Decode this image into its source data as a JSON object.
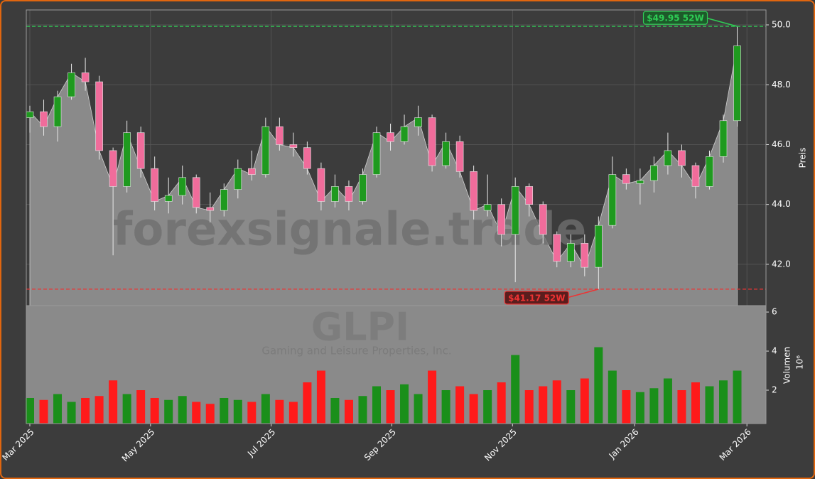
{
  "chart_data": [
    {
      "type": "candlestick",
      "categories": [
        null,
        null,
        null,
        null,
        null,
        null,
        null,
        null,
        null,
        null,
        null,
        null,
        null,
        null,
        null,
        null,
        null,
        null,
        null,
        null,
        null,
        null,
        null,
        null,
        null,
        null,
        null,
        null,
        null,
        null,
        null,
        null,
        null,
        null,
        null,
        null,
        null,
        null,
        null,
        null,
        null,
        null,
        null,
        null,
        null,
        null,
        null,
        null,
        null,
        null,
        null,
        null
      ],
      "open": [
        46.9,
        47.1,
        46.6,
        47.6,
        48.4,
        48.1,
        45.8,
        44.6,
        46.4,
        45.2,
        44.1,
        44.3,
        44.9,
        43.9,
        43.8,
        44.5,
        45.2,
        45.0,
        46.6,
        46.0,
        45.9,
        45.2,
        44.1,
        44.6,
        44.1,
        45.0,
        46.4,
        46.1,
        46.6,
        46.9,
        45.3,
        46.1,
        45.1,
        43.8,
        44.0,
        43.0,
        44.6,
        44.0,
        43.0,
        42.1,
        42.7,
        41.9,
        43.3,
        45.0,
        44.7,
        44.8,
        45.3,
        45.8,
        45.3,
        44.6,
        45.6,
        46.8
      ],
      "high": [
        47.3,
        47.5,
        47.8,
        48.7,
        48.9,
        48.3,
        45.9,
        46.8,
        46.6,
        45.6,
        44.9,
        45.3,
        45.0,
        44.4,
        44.7,
        45.5,
        45.8,
        46.9,
        46.9,
        46.4,
        46.1,
        45.4,
        45.0,
        44.8,
        45.2,
        46.6,
        46.7,
        47.0,
        47.3,
        47.0,
        46.4,
        46.3,
        45.3,
        45.0,
        44.2,
        44.9,
        44.7,
        44.1,
        43.1,
        43.0,
        43.0,
        43.6,
        45.6,
        45.2,
        45.2,
        45.6,
        46.4,
        46.0,
        45.4,
        45.8,
        47.0,
        49.95
      ],
      "low": [
        46.4,
        46.3,
        46.1,
        47.5,
        47.8,
        45.5,
        42.3,
        44.4,
        44.9,
        43.8,
        43.7,
        44.0,
        43.7,
        43.4,
        43.6,
        44.2,
        44.8,
        44.9,
        45.8,
        45.6,
        45.0,
        43.8,
        43.9,
        43.8,
        44.0,
        44.9,
        45.8,
        46.0,
        46.3,
        45.1,
        45.2,
        44.9,
        43.5,
        43.6,
        42.6,
        41.4,
        43.6,
        42.7,
        41.9,
        41.9,
        41.6,
        41.17,
        43.2,
        44.5,
        44.0,
        44.4,
        45.0,
        44.9,
        44.2,
        44.5,
        45.4,
        46.6
      ],
      "close": [
        47.1,
        46.6,
        47.6,
        48.4,
        48.1,
        45.8,
        44.6,
        46.4,
        45.2,
        44.1,
        44.3,
        44.9,
        43.9,
        43.8,
        44.5,
        45.2,
        45.0,
        46.6,
        46.0,
        45.9,
        45.2,
        44.1,
        44.6,
        44.1,
        45.0,
        46.4,
        46.1,
        46.6,
        46.9,
        45.3,
        46.1,
        45.1,
        43.8,
        44.0,
        43.0,
        44.6,
        44.0,
        43.0,
        42.1,
        42.7,
        41.9,
        43.3,
        45.0,
        44.7,
        44.8,
        45.3,
        45.8,
        45.3,
        44.6,
        45.6,
        46.8,
        49.3
      ],
      "up_color": "#1f9a1f",
      "down_color": "#f06c9b",
      "area_color": "#8a8a8a",
      "ylim": [
        40.62,
        50.5
      ],
      "yticks": [
        {
          "value": 42,
          "label": "42.0"
        },
        {
          "value": 44,
          "label": "44.0"
        },
        {
          "value": 46,
          "label": "46.0"
        },
        {
          "value": 48,
          "label": "48.0"
        },
        {
          "value": 50,
          "label": "50.0"
        }
      ],
      "ylabel": "Preis",
      "grid": true,
      "annotations": [
        {
          "text": "$49.95 52W",
          "value": 49.95,
          "color": "#2ecc55"
        },
        {
          "text": "$41.17 52W",
          "value": 41.17,
          "color": "#ee3333"
        }
      ],
      "watermark": "forexsignale.trade"
    },
    {
      "type": "bar",
      "title": "GLPI",
      "subtitle": "Gaming and Leisure Properties, Inc.",
      "categories": [
        null,
        null,
        null,
        null,
        null,
        null,
        null,
        null,
        null,
        null,
        null,
        null,
        null,
        null,
        null,
        null,
        null,
        null,
        null,
        null,
        null,
        null,
        null,
        null,
        null,
        null,
        null,
        null,
        null,
        null,
        null,
        null,
        null,
        null,
        null,
        null,
        null,
        null,
        null,
        null,
        null,
        null,
        null,
        null,
        null,
        null,
        null,
        null,
        null,
        null,
        null,
        null
      ],
      "values": [
        1.6,
        1.5,
        1.8,
        1.4,
        1.6,
        1.7,
        2.5,
        1.8,
        2.0,
        1.6,
        1.5,
        1.7,
        1.4,
        1.3,
        1.6,
        1.5,
        1.4,
        1.8,
        1.5,
        1.4,
        2.4,
        3.0,
        1.6,
        1.5,
        1.7,
        2.2,
        2.0,
        2.3,
        1.8,
        3.0,
        2.0,
        2.2,
        1.8,
        2.0,
        2.4,
        3.8,
        2.0,
        2.2,
        2.5,
        2.0,
        2.6,
        4.2,
        3.0,
        2.0,
        1.9,
        2.1,
        2.6,
        2.0,
        2.4,
        2.2,
        2.5,
        3.0
      ],
      "up_color": "#1a8f1a",
      "down_color": "#ff1a1a",
      "ylim": [
        0.29,
        6.33
      ],
      "yticks": [
        2,
        4,
        6
      ],
      "ylabel": "Volumen",
      "yscale_label": "10⁶",
      "xticks": [
        {
          "value": 0,
          "label": "Mar 2025"
        },
        {
          "value": 8.7,
          "label": "May 2025"
        },
        {
          "value": 17.4,
          "label": "Jul 2025"
        },
        {
          "value": 26.1,
          "label": "Sep 2025"
        },
        {
          "value": 34.8,
          "label": "Nov 2025"
        },
        {
          "value": 43.6,
          "label": "Jan 2026"
        },
        {
          "value": 51.7,
          "label": "Mar 2026"
        }
      ]
    }
  ]
}
